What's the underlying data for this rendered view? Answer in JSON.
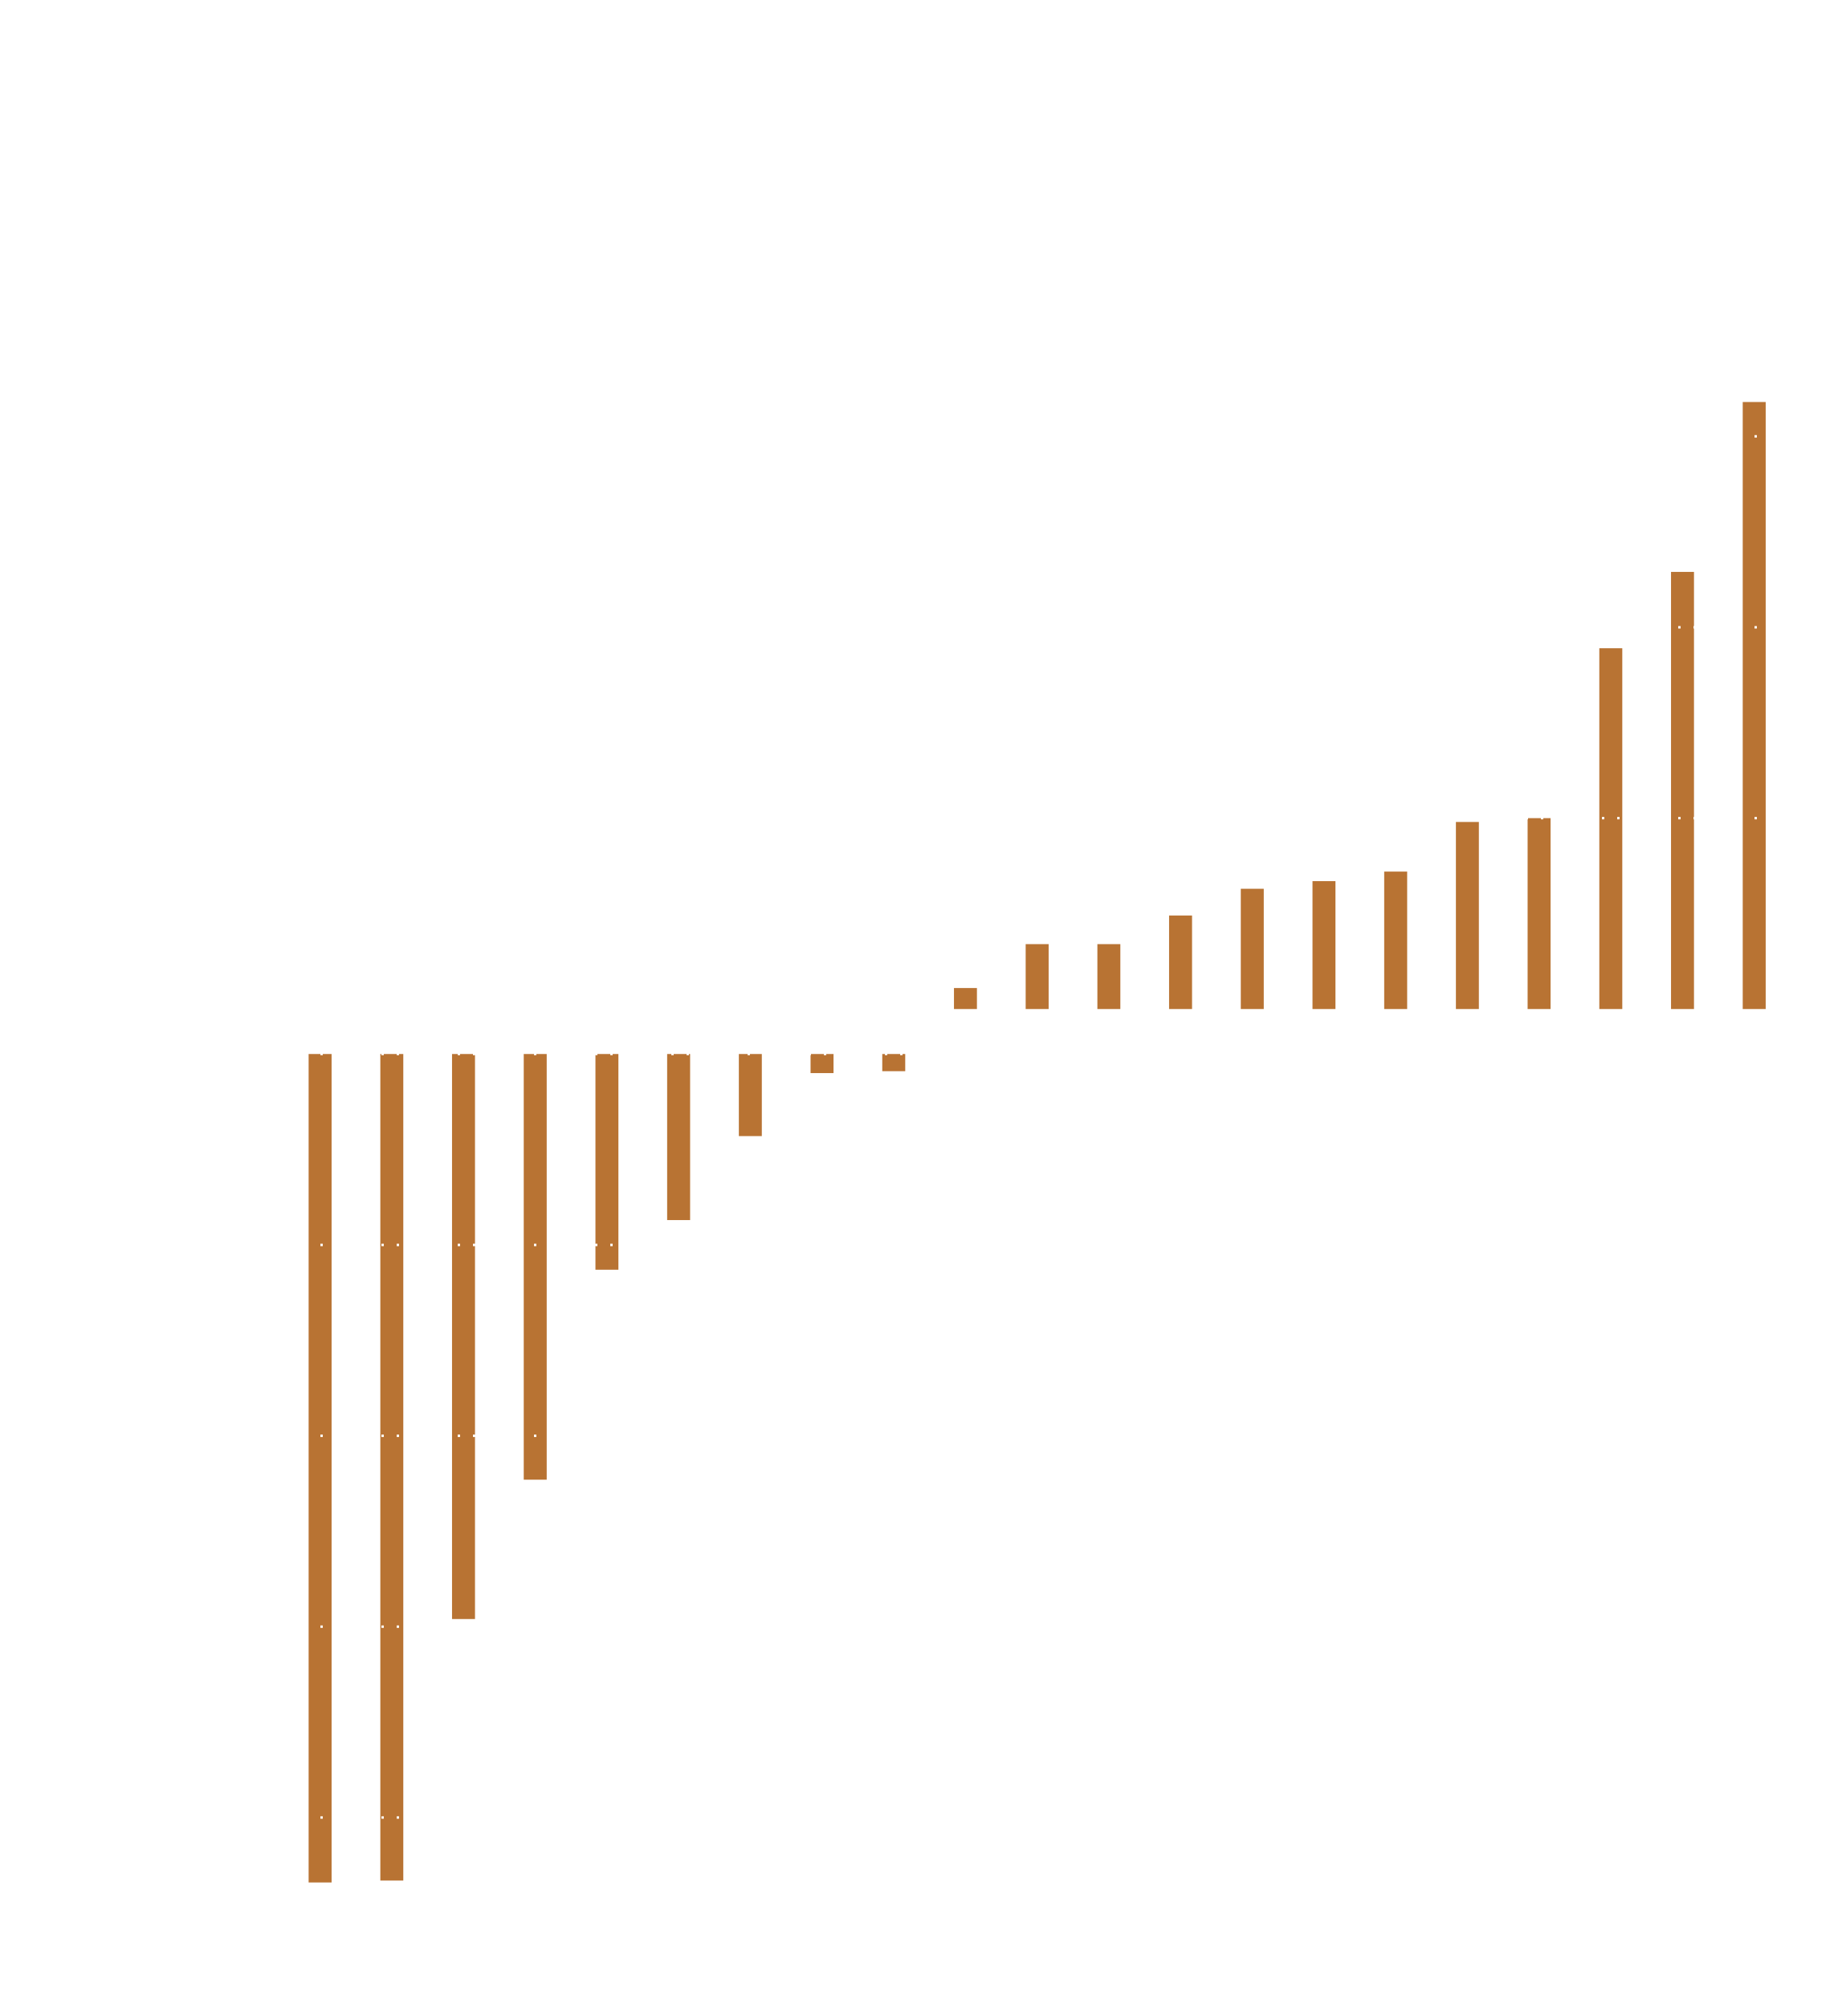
{
  "chart_data": {
    "type": "bar",
    "categories": [
      null,
      null,
      null,
      null,
      null,
      null,
      null,
      null,
      null,
      null,
      null,
      null,
      null,
      null,
      null,
      null,
      null,
      null,
      null,
      null,
      null
    ],
    "values": [
      -4.34,
      -4.33,
      -2.96,
      -2.23,
      -1.13,
      -0.87,
      -0.43,
      -0.1,
      -0.09,
      0.11,
      0.34,
      0.34,
      0.49,
      0.63,
      0.67,
      0.72,
      0.98,
      1.0,
      1.89,
      2.29,
      3.18
    ],
    "color": "#b87333",
    "ylim": [
      -4.4,
      3.3
    ],
    "yticks": [
      -4,
      -3,
      -2,
      -1,
      0,
      1,
      2,
      3
    ],
    "grid": true,
    "grid_color": "#ffffff"
  }
}
